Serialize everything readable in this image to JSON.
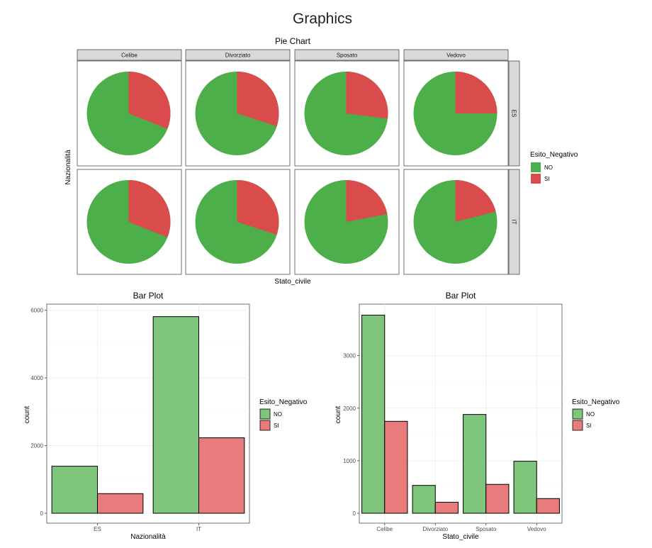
{
  "page": {
    "title": "Graphics"
  },
  "colors": {
    "NO": "#4daf4a",
    "SI": "#e41a1c",
    "NO_fill": "#7fc57c",
    "SI_fill": "#e87c7c",
    "strip": "#d9d9d9"
  },
  "chart_data": [
    {
      "type": "pie",
      "title": "Pie Chart",
      "xlabel": "Stato_civile",
      "ylabel": "Nazionalità",
      "columns": [
        "Celibe",
        "Divorziato",
        "Sposato",
        "Vedovo"
      ],
      "rows": [
        "ES",
        "IT"
      ],
      "legend": {
        "title": "Esito_Negativo",
        "entries": [
          "NO",
          "SI"
        ],
        "placement": "right"
      },
      "si_share": [
        [
          0.31,
          0.3,
          0.27,
          0.25
        ],
        [
          0.31,
          0.3,
          0.22,
          0.21
        ]
      ]
    },
    {
      "type": "bar",
      "title": "Bar Plot",
      "xlabel": "Nazionalità",
      "ylabel": "count",
      "categories": [
        "ES",
        "IT"
      ],
      "series": [
        {
          "name": "NO",
          "values": [
            1390,
            5810
          ]
        },
        {
          "name": "SI",
          "values": [
            580,
            2230
          ]
        }
      ],
      "ylim": [
        0,
        6180
      ],
      "yticks": [
        0,
        2000,
        4000,
        6000
      ],
      "ytick_labels": [
        "0",
        "2000",
        "4000",
        "6000"
      ],
      "legend": {
        "title": "Esito_Negativo",
        "entries": [
          "NO",
          "SI"
        ],
        "placement": "right"
      },
      "grid": true
    },
    {
      "type": "bar",
      "title": "Bar Plot",
      "xlabel": "Stato_civile",
      "ylabel": "count",
      "categories": [
        "Celibe",
        "Divorziato",
        "Sposato",
        "Vedovo"
      ],
      "series": [
        {
          "name": "NO",
          "values": [
            3770,
            530,
            1880,
            990
          ]
        },
        {
          "name": "SI",
          "values": [
            1750,
            210,
            550,
            280
          ]
        }
      ],
      "ylim": [
        0,
        3980
      ],
      "yticks": [
        0,
        1000,
        2000,
        3000
      ],
      "ytick_labels": [
        "0",
        "1000",
        "2000",
        "3000"
      ],
      "legend": {
        "title": "Esito_Negativo",
        "entries": [
          "NO",
          "SI"
        ],
        "placement": "right"
      },
      "grid": true
    }
  ]
}
